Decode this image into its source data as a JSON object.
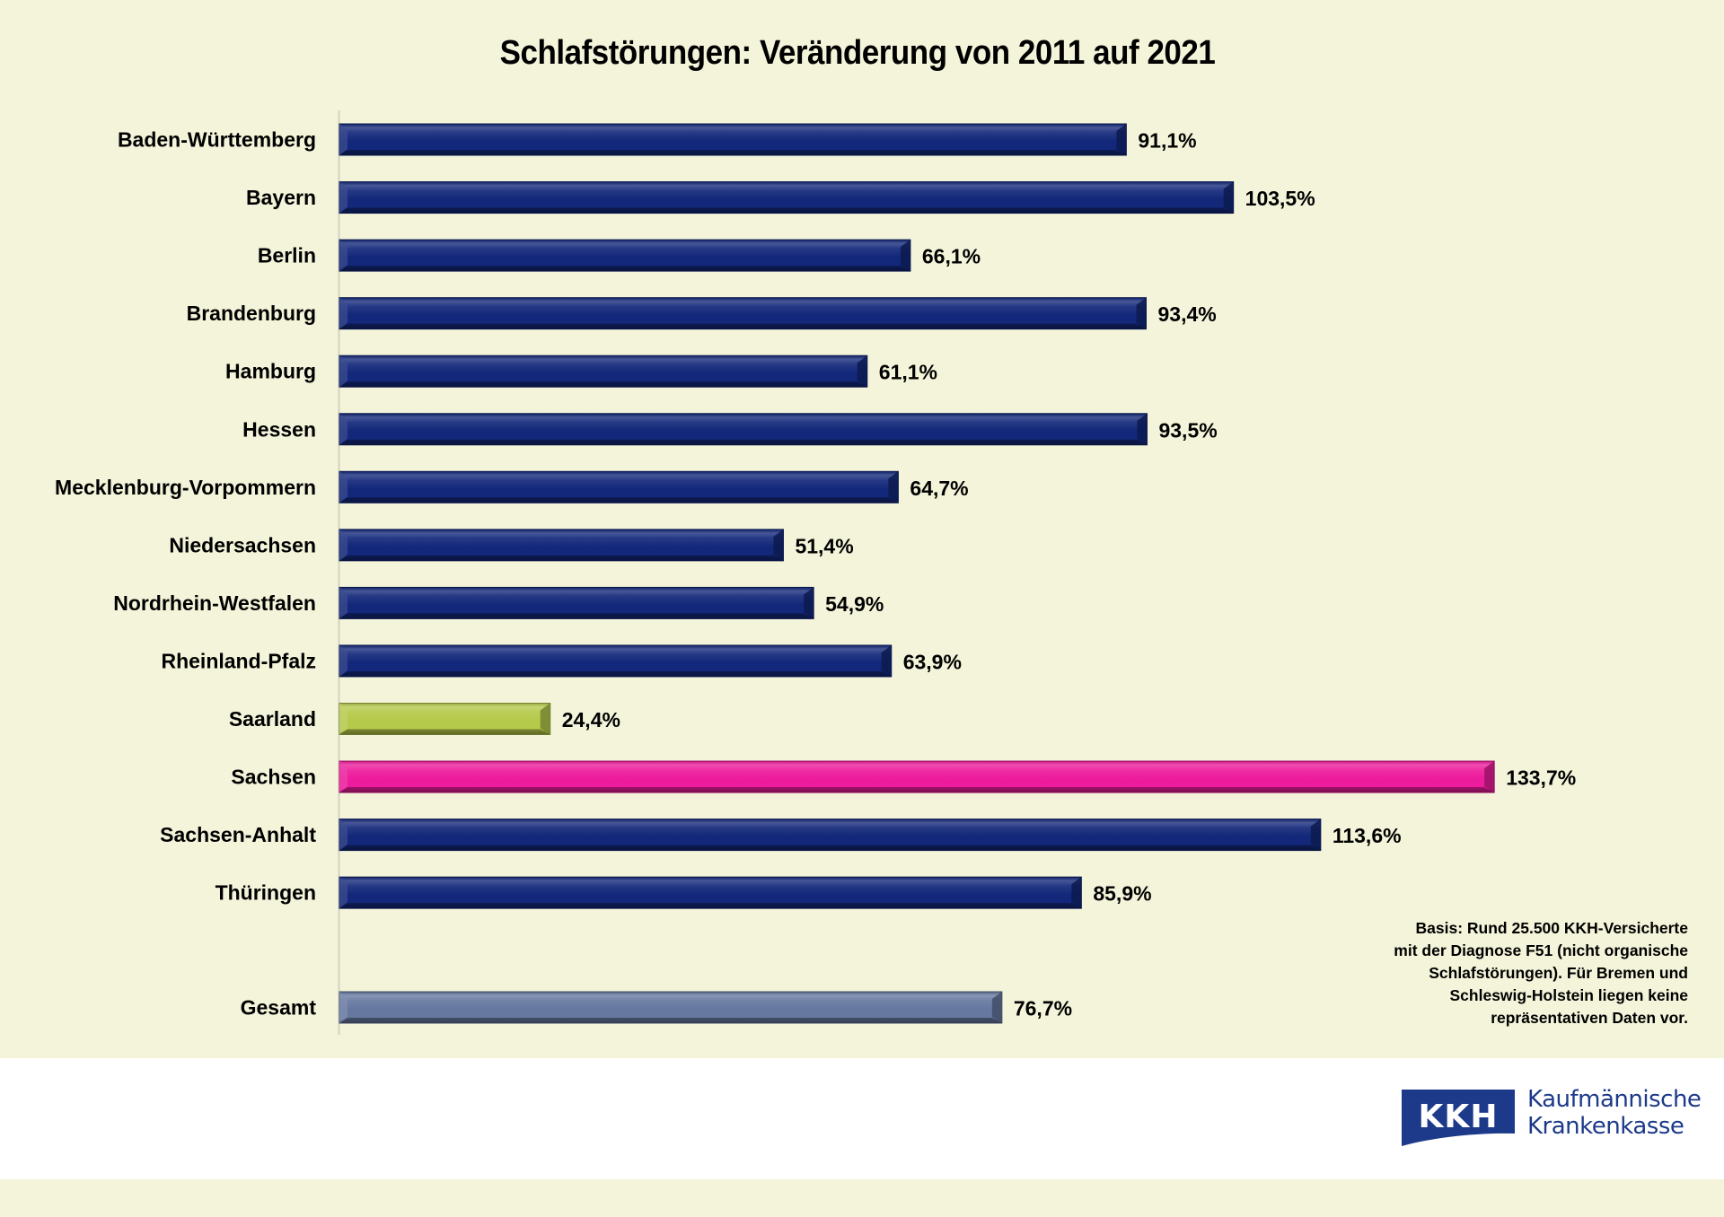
{
  "chart_data": {
    "type": "bar",
    "orientation": "horizontal",
    "title": "Schlafstörungen: Veränderung von 2011 auf 2021",
    "xlabel": "",
    "ylabel": "",
    "unit": "%",
    "xlim": [
      0,
      140
    ],
    "grid": false,
    "legend": "none",
    "categories": [
      "Baden-Württemberg",
      "Bayern",
      "Berlin",
      "Brandenburg",
      "Hamburg",
      "Hessen",
      "Mecklenburg-Vorpommern",
      "Niedersachsen",
      "Nordrhein-Westfalen",
      "Rheinland-Pfalz",
      "Saarland",
      "Sachsen",
      "Sachsen-Anhalt",
      "Thüringen",
      "Gesamt"
    ],
    "values": [
      91.1,
      103.5,
      66.1,
      93.4,
      61.1,
      93.5,
      64.7,
      51.4,
      54.9,
      63.9,
      24.4,
      133.7,
      113.6,
      85.9,
      76.7
    ],
    "value_labels": [
      "91,1%",
      "103,5%",
      "66,1%",
      "93,4%",
      "61,1%",
      "93,5%",
      "64,7%",
      "51,4%",
      "54,9%",
      "63,9%",
      "24,4%",
      "133,7%",
      "113,6%",
      "85,9%",
      "76,7%"
    ],
    "bar_colors": [
      "#13287a",
      "#13287a",
      "#13287a",
      "#13287a",
      "#13287a",
      "#13287a",
      "#13287a",
      "#13287a",
      "#13287a",
      "#13287a",
      "#b5c94a",
      "#ec1c9c",
      "#13287a",
      "#13287a",
      "#6678a0"
    ],
    "highlights": {
      "min": "Saarland",
      "max": "Sachsen",
      "total": "Gesamt"
    }
  },
  "footnote": {
    "lines": [
      "Basis: Rund 25.500 KKH-Versicherte",
      "mit der Diagnose F51 (nicht organische",
      "Schlafstörungen). Für Bremen und",
      "Schleswig-Holstein liegen keine",
      "repräsentativen Daten vor."
    ]
  },
  "logo": {
    "mark": "KKH",
    "name_line1": "Kaufmännische",
    "name_line2": "Krankenkasse",
    "color": "#1d3a8a"
  },
  "colors": {
    "background": "#f4f4da",
    "default_bar": "#13287a"
  }
}
